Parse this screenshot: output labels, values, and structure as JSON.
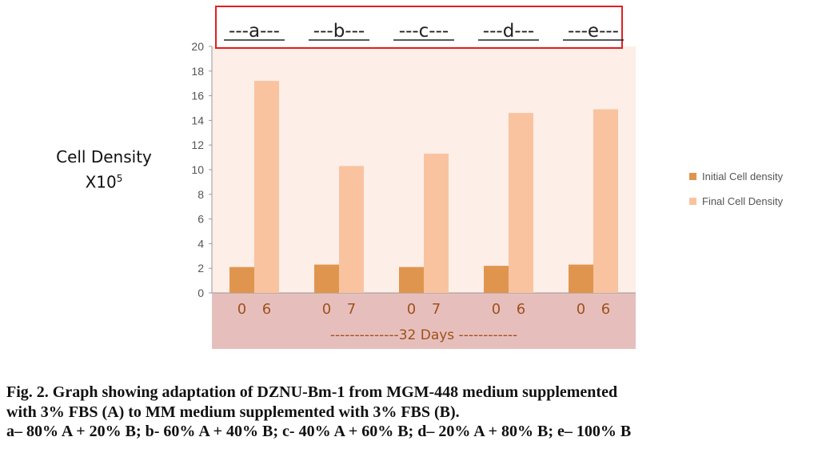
{
  "chart_data": {
    "type": "bar",
    "ylabel_line1": "Cell Density",
    "ylabel_line2": "X10",
    "ylabel_sup": "5",
    "ylim": [
      0,
      20
    ],
    "yticks": [
      "0",
      "2",
      "4",
      "6",
      "8",
      "10",
      "12",
      "14",
      "16",
      "18",
      "20"
    ],
    "groups": [
      "---a---",
      "---b---",
      "---c---",
      "---d---",
      "---e---"
    ],
    "x_tick_labels": [
      [
        "0",
        "6"
      ],
      [
        "0",
        "7"
      ],
      [
        "0",
        "7"
      ],
      [
        "0",
        "6"
      ],
      [
        "0",
        "6"
      ]
    ],
    "x_footer": "--------------32 Days ------------",
    "series": [
      {
        "name": "Initial Cell density",
        "color": "#e0954e",
        "values": [
          2.1,
          2.3,
          2.1,
          2.2,
          2.3
        ]
      },
      {
        "name": "Final Cell Density",
        "color": "#f9c3a0",
        "values": [
          17.2,
          10.3,
          11.3,
          14.6,
          14.9
        ]
      }
    ],
    "legend_position": "right",
    "grid": false,
    "colors": {
      "plot_bg": "#fdeee8",
      "xband_bg": "#e6bfbd",
      "highlight_box": "#e02020"
    }
  },
  "caption": {
    "line1": "Fig. 2. Graph showing adaptation of DZNU-Bm-1 from MGM-448 medium supplemented",
    "line2": "with 3% FBS (A) to MM medium supplemented with 3% FBS (B).",
    "line3": "a– 80% A + 20% B; b- 60% A + 40% B; c- 40% A + 60% B; d– 20% A + 80% B; e– 100% B"
  }
}
